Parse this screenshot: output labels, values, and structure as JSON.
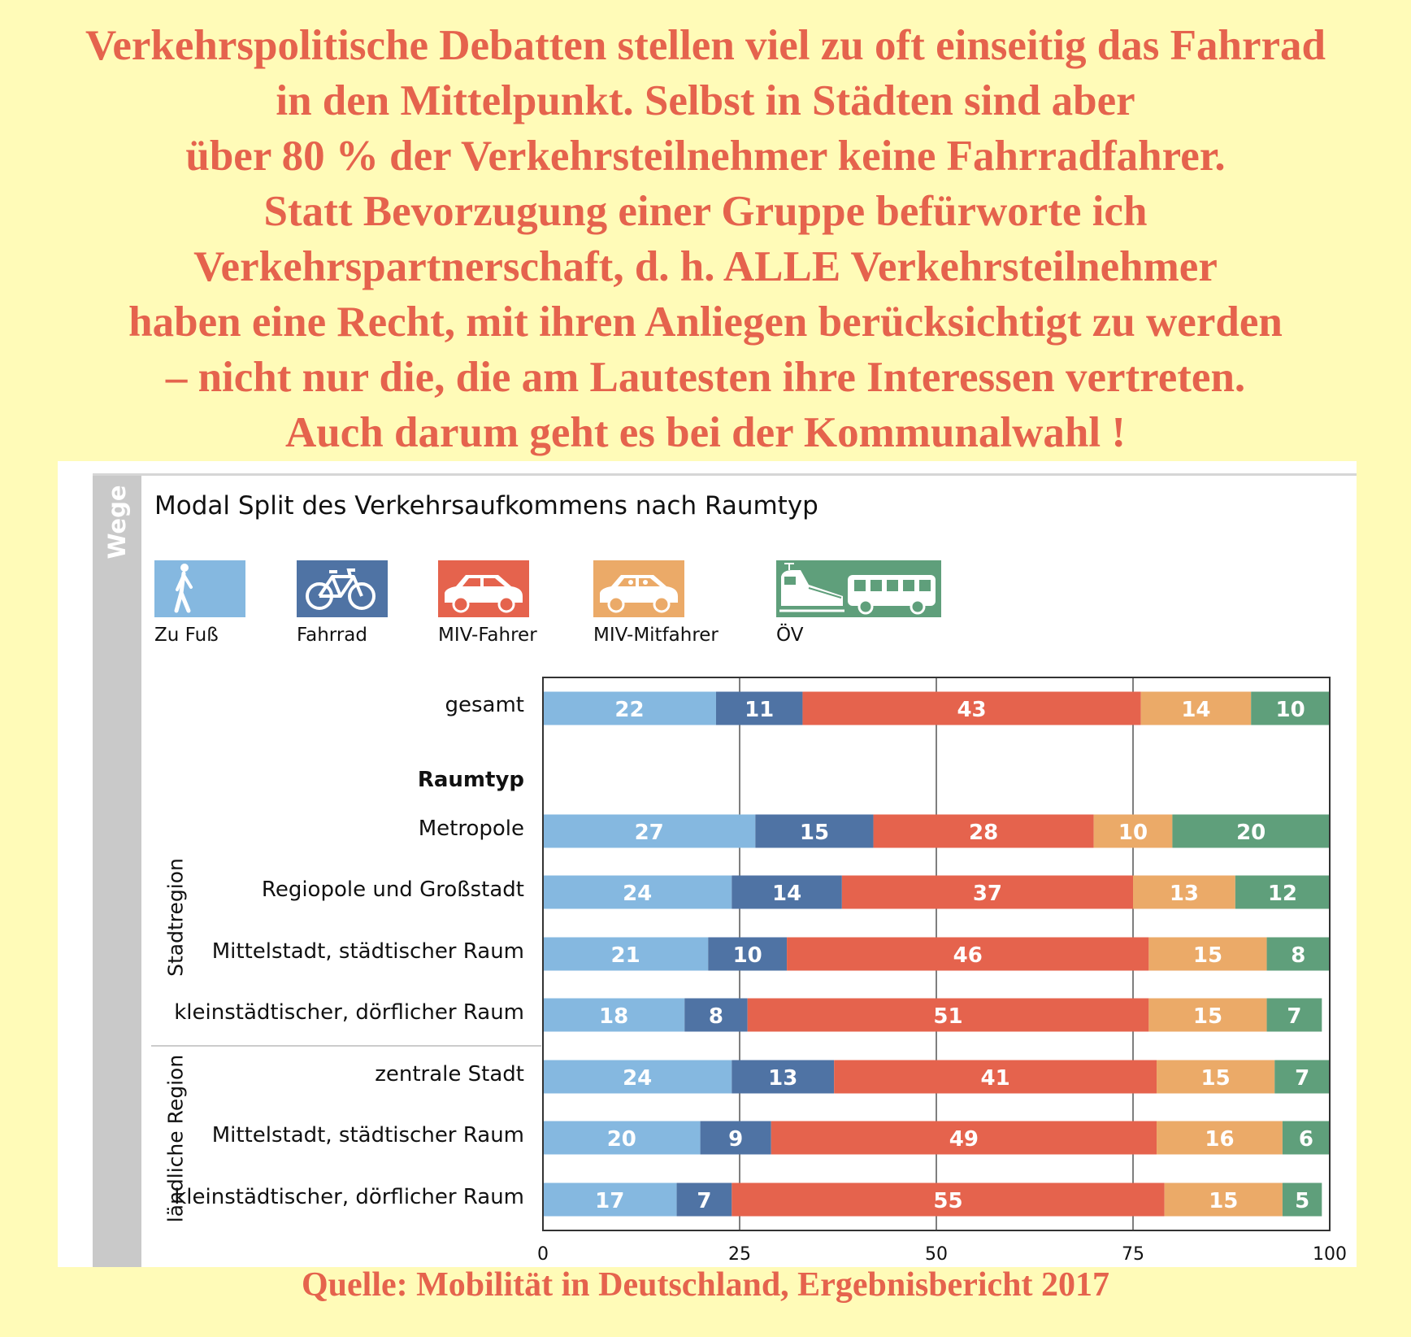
{
  "headline": {
    "lines": [
      "Verkehrspolitische Debatten stellen viel zu oft einseitig das Fahrrad",
      "in den Mittelpunkt. Selbst in Städten sind aber",
      "über 80 % der Verkehrsteilnehmer keine Fahrradfahrer.",
      "Statt Bevorzugung einer Gruppe befürworte ich",
      "Verkehrspartnerschaft, d. h. ALLE Verkehrsteilnehmer",
      "haben eine Recht, mit ihren Anliegen berücksichtigt zu werden",
      "– nicht nur die, die am Lautesten ihre Interessen vertreten.",
      "Auch darum geht es bei der Kommunalwahl !"
    ]
  },
  "sidebar_label": "Wege",
  "source": "Quelle: Mobilität in Deutschland, Ergebnisbericht 2017",
  "legend": [
    {
      "label": "Zu Fuß",
      "icon": "pedestrian-icon",
      "color": "#85b8e0"
    },
    {
      "label": "Fahrrad",
      "icon": "bicycle-icon",
      "color": "#4f73a4"
    },
    {
      "label": "MIV-Fahrer",
      "icon": "car-icon",
      "color": "#e5634d"
    },
    {
      "label": "MIV-Mitfahrer",
      "icon": "car-passenger-icon",
      "color": "#ebaa68"
    },
    {
      "label": "ÖV",
      "icon": "train-bus-icon",
      "color": "#5f9f7b"
    }
  ],
  "chart_data": {
    "type": "bar",
    "orientation": "horizontal",
    "stacked": true,
    "title": "Modal Split des Verkehrsaufkommens nach Raumtyp",
    "section_header": "Raumtyp",
    "groups": [
      "Stadtregion",
      "ländliche Region"
    ],
    "categories": [
      "gesamt",
      "Metropole",
      "Regiopole und Großstadt",
      "Mittelstadt, städtischer Raum",
      "kleinstädtischer, dörflicher Raum",
      "zentrale Stadt",
      "Mittelstadt, städtischer Raum",
      "kleinstädtischer, dörflicher Raum"
    ],
    "series": [
      {
        "name": "Zu Fuß",
        "color": "#85b8e0",
        "values": [
          22,
          27,
          24,
          21,
          18,
          24,
          20,
          17
        ]
      },
      {
        "name": "Fahrrad",
        "color": "#4f73a4",
        "values": [
          11,
          15,
          14,
          10,
          8,
          13,
          9,
          7
        ]
      },
      {
        "name": "MIV-Fahrer",
        "color": "#e5634d",
        "values": [
          43,
          28,
          37,
          46,
          51,
          41,
          49,
          55
        ]
      },
      {
        "name": "MIV-Mitfahrer",
        "color": "#ebaa68",
        "values": [
          14,
          10,
          13,
          15,
          15,
          15,
          16,
          15
        ]
      },
      {
        "name": "ÖV",
        "color": "#5f9f7b",
        "values": [
          10,
          20,
          12,
          8,
          7,
          7,
          6,
          5
        ]
      }
    ],
    "xlim": [
      0,
      100
    ],
    "xticks": [
      0,
      25,
      50,
      75,
      100
    ],
    "grid": true,
    "legend_position": "top"
  }
}
